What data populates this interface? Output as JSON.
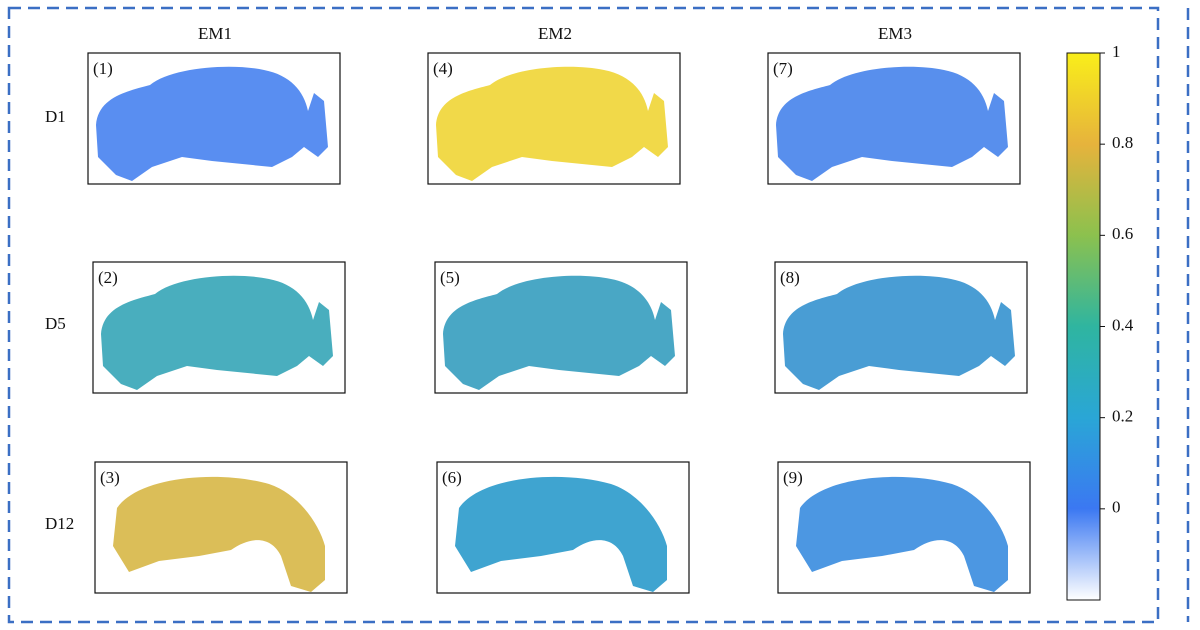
{
  "columns": [
    "EM1",
    "EM2",
    "EM3"
  ],
  "rows": [
    {
      "label": "D1",
      "panels": [
        "(1)",
        "(4)",
        "(7)"
      ]
    },
    {
      "label": "D5",
      "panels": [
        "(2)",
        "(5)",
        "(8)"
      ]
    },
    {
      "label": "D12",
      "panels": [
        "(3)",
        "(6)",
        "(9)"
      ]
    }
  ],
  "colorbar": {
    "lim": [
      -0.2,
      1
    ],
    "ticks": [
      0,
      0.2,
      0.4,
      0.6,
      0.8,
      1
    ]
  }
}
